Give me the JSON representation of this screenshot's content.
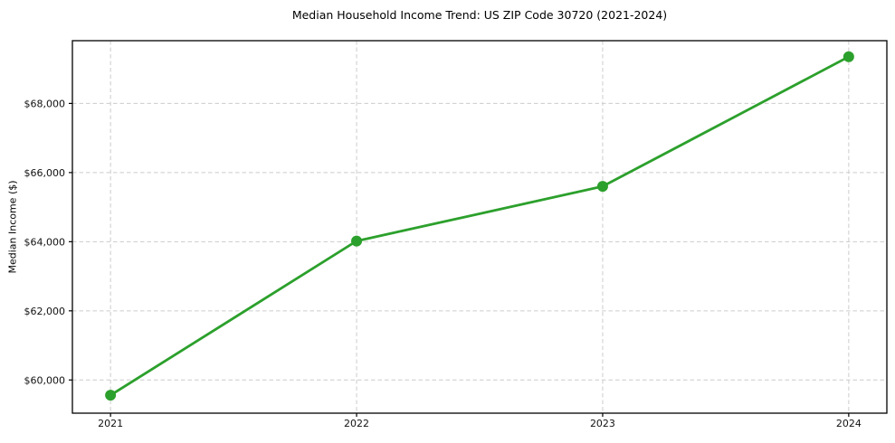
{
  "chart_data": {
    "type": "line",
    "title": "Median Household Income Trend: US ZIP Code 30720 (2021-2024)",
    "xlabel": "",
    "ylabel": "Median Income ($)",
    "x": [
      2021,
      2022,
      2023,
      2024
    ],
    "values": [
      59560,
      64020,
      65600,
      69350
    ],
    "xticks": [
      2021,
      2022,
      2023,
      2024
    ],
    "xtick_labels": [
      "2021",
      "2022",
      "2023",
      "2024"
    ],
    "yticks": [
      60000,
      62000,
      64000,
      66000,
      68000
    ],
    "ytick_labels": [
      "$60,000",
      "$62,000",
      "$64,000",
      "$66,000",
      "$68,000"
    ],
    "xlim": [
      2020.845,
      2024.155
    ],
    "ylim": [
      59040,
      69815
    ],
    "grid": true,
    "grid_style": "dashed",
    "legend": "none",
    "style": {
      "line_color": "#2ca02c",
      "marker": "circle",
      "marker_color": "#2ca02c",
      "grid_color": "#cccccc",
      "spine_color": "#000000",
      "tick_text_color": "#111111",
      "background": "#ffffff"
    }
  }
}
